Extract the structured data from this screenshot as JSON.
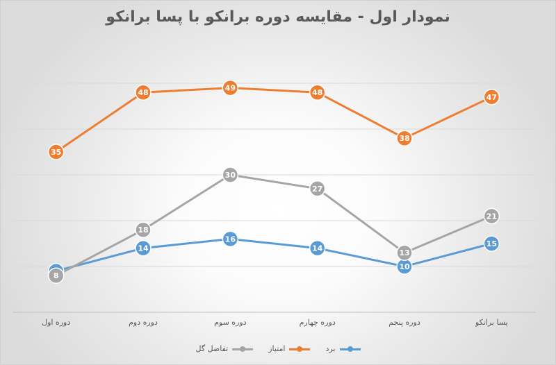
{
  "chart_data": {
    "type": "line",
    "title": "نمودار اول - مقایسه دوره برانکو با پسا برانکو",
    "categories": [
      "دوره اول",
      "دوره دوم",
      "دوره سوم",
      "دوره چهارم",
      "دوره پنجم",
      "پسا برانکو"
    ],
    "series": [
      {
        "name": "برد",
        "color": "#5b9bd5",
        "values": [
          9,
          14,
          16,
          14,
          10,
          15
        ]
      },
      {
        "name": "امتیاز",
        "color": "#ed7d31",
        "values": [
          35,
          48,
          49,
          48,
          38,
          47
        ]
      },
      {
        "name": "تفاضل گل",
        "color": "#a5a5a5",
        "values": [
          8,
          18,
          30,
          27,
          13,
          21
        ]
      }
    ],
    "ylim": [
      0,
      60
    ],
    "y_gridlines": [
      0,
      10,
      20,
      30,
      40,
      50
    ],
    "grid": true,
    "legend": "bottom"
  }
}
